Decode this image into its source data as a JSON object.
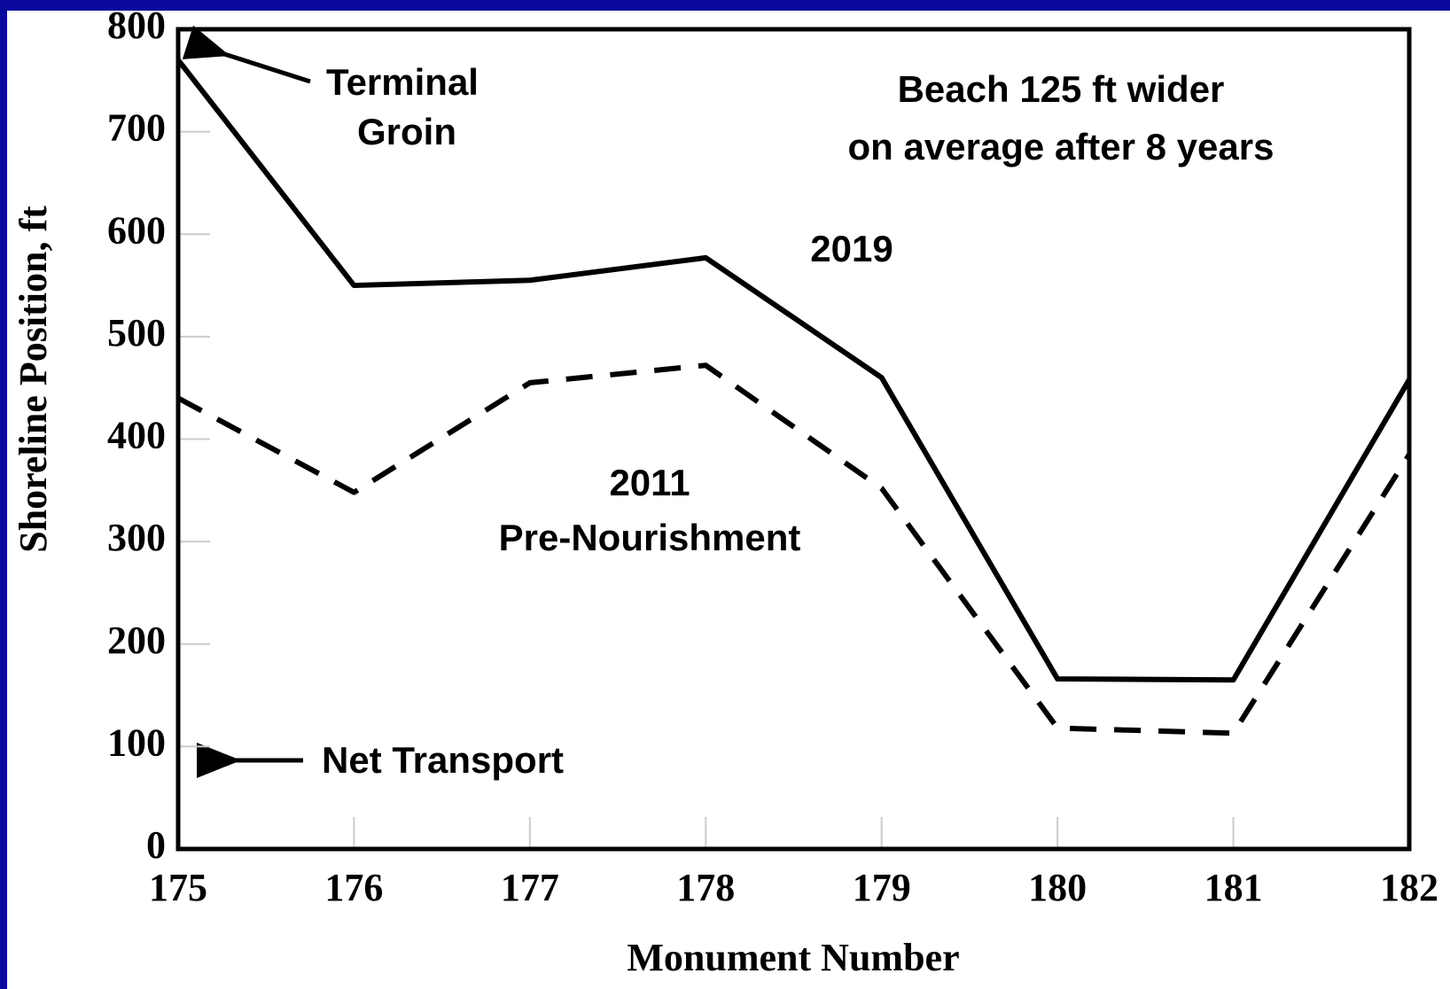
{
  "chart_data": {
    "type": "line",
    "xlabel": "Monument Number",
    "ylabel": "Shoreline Position, ft",
    "x": [
      175,
      176,
      177,
      178,
      179,
      180,
      181,
      182
    ],
    "series": [
      {
        "name": "2019",
        "color": "#000000",
        "dash": false,
        "values": [
          770,
          550,
          555,
          577,
          460,
          166,
          165,
          458
        ]
      },
      {
        "name": "2011",
        "color": "#000000",
        "dash": true,
        "values": [
          440,
          348,
          455,
          472,
          352,
          118,
          113,
          385
        ]
      }
    ],
    "xlim": [
      175,
      182
    ],
    "xticks": [
      175,
      176,
      177,
      178,
      179,
      180,
      181,
      182
    ],
    "ylim": [
      0,
      800
    ],
    "yticks": [
      0,
      100,
      200,
      300,
      400,
      500,
      600,
      700,
      800
    ],
    "annotations": [
      {
        "lines": [
          "Terminal",
          "Groin"
        ]
      },
      {
        "lines": [
          "Beach 125 ft wider",
          "on average after 8 years"
        ]
      },
      {
        "lines": [
          "Pre-Nourishment"
        ]
      },
      {
        "lines": [
          "Net Transport"
        ]
      }
    ]
  }
}
